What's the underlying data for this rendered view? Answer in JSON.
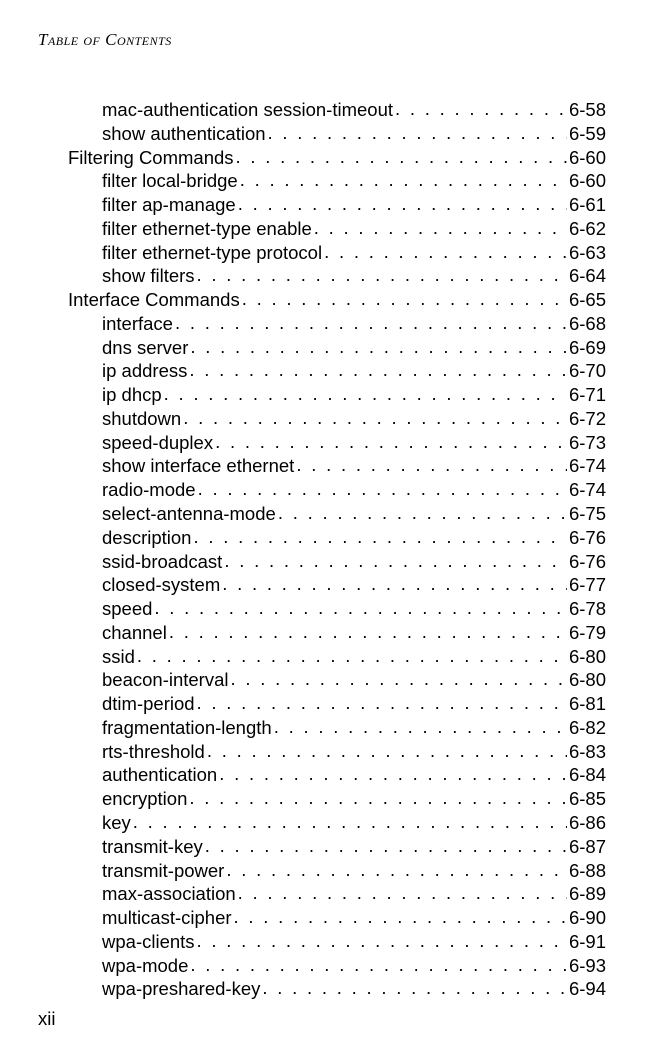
{
  "header": "Table of Contents",
  "footer": "xii",
  "entries": [
    {
      "level": "sub",
      "label": "mac-authentication session-timeout",
      "page": "6-58"
    },
    {
      "level": "sub",
      "label": "show authentication",
      "page": "6-59"
    },
    {
      "level": "section",
      "label": "Filtering Commands",
      "page": "6-60"
    },
    {
      "level": "sub",
      "label": "filter local-bridge",
      "page": "6-60"
    },
    {
      "level": "sub",
      "label": "filter ap-manage",
      "page": "6-61"
    },
    {
      "level": "sub",
      "label": "filter ethernet-type enable",
      "page": "6-62"
    },
    {
      "level": "sub",
      "label": "filter ethernet-type protocol",
      "page": "6-63"
    },
    {
      "level": "sub",
      "label": "show filters",
      "page": "6-64"
    },
    {
      "level": "section",
      "label": "Interface Commands",
      "page": "6-65"
    },
    {
      "level": "sub",
      "label": "interface",
      "page": "6-68"
    },
    {
      "level": "sub",
      "label": "dns server",
      "page": "6-69"
    },
    {
      "level": "sub",
      "label": "ip address",
      "page": "6-70"
    },
    {
      "level": "sub",
      "label": "ip dhcp",
      "page": "6-71"
    },
    {
      "level": "sub",
      "label": "shutdown",
      "page": "6-72"
    },
    {
      "level": "sub",
      "label": "speed-duplex",
      "page": "6-73"
    },
    {
      "level": "sub",
      "label": "show interface ethernet",
      "page": "6-74"
    },
    {
      "level": "sub",
      "label": "radio-mode",
      "page": "6-74"
    },
    {
      "level": "sub",
      "label": "select-antenna-mode",
      "page": "6-75"
    },
    {
      "level": "sub",
      "label": "description",
      "page": "6-76"
    },
    {
      "level": "sub",
      "label": "ssid-broadcast",
      "page": "6-76"
    },
    {
      "level": "sub",
      "label": "closed-system",
      "page": "6-77"
    },
    {
      "level": "sub",
      "label": "speed",
      "page": "6-78"
    },
    {
      "level": "sub",
      "label": "channel",
      "page": "6-79"
    },
    {
      "level": "sub",
      "label": "ssid",
      "page": "6-80"
    },
    {
      "level": "sub",
      "label": "beacon-interval",
      "page": "6-80"
    },
    {
      "level": "sub",
      "label": "dtim-period",
      "page": "6-81"
    },
    {
      "level": "sub",
      "label": "fragmentation-length",
      "page": "6-82"
    },
    {
      "level": "sub",
      "label": "rts-threshold",
      "page": "6-83"
    },
    {
      "level": "sub",
      "label": "authentication",
      "page": "6-84"
    },
    {
      "level": "sub",
      "label": "encryption",
      "page": "6-85"
    },
    {
      "level": "sub",
      "label": "key",
      "page": "6-86"
    },
    {
      "level": "sub",
      "label": "transmit-key",
      "page": "6-87"
    },
    {
      "level": "sub",
      "label": "transmit-power",
      "page": "6-88"
    },
    {
      "level": "sub",
      "label": "max-association",
      "page": "6-89"
    },
    {
      "level": "sub",
      "label": "multicast-cipher",
      "page": "6-90"
    },
    {
      "level": "sub",
      "label": "wpa-clients",
      "page": "6-91"
    },
    {
      "level": "sub",
      "label": "wpa-mode",
      "page": "6-93"
    },
    {
      "level": "sub",
      "label": "wpa-preshared-key",
      "page": "6-94"
    }
  ]
}
